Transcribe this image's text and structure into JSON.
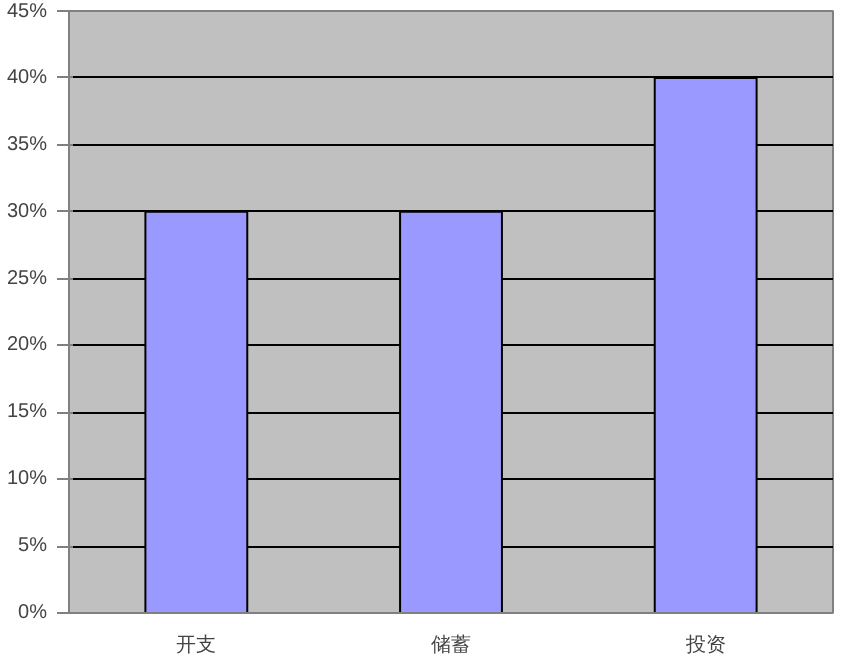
{
  "chart_data": {
    "type": "bar",
    "categories": [
      "开支",
      "储蓄",
      "投资"
    ],
    "values": [
      30,
      30,
      40
    ],
    "color": "#9999ff",
    "ylim": [
      0,
      45
    ],
    "yticks": [
      {
        "value": 0,
        "label": "0%"
      },
      {
        "value": 5,
        "label": "5%"
      },
      {
        "value": 10,
        "label": "10%"
      },
      {
        "value": 15,
        "label": "15%"
      },
      {
        "value": 20,
        "label": "20%"
      },
      {
        "value": 25,
        "label": "25%"
      },
      {
        "value": 30,
        "label": "30%"
      },
      {
        "value": 35,
        "label": "35%"
      },
      {
        "value": 40,
        "label": "40%"
      },
      {
        "value": 45,
        "label": "45%"
      }
    ],
    "grid": "y"
  }
}
